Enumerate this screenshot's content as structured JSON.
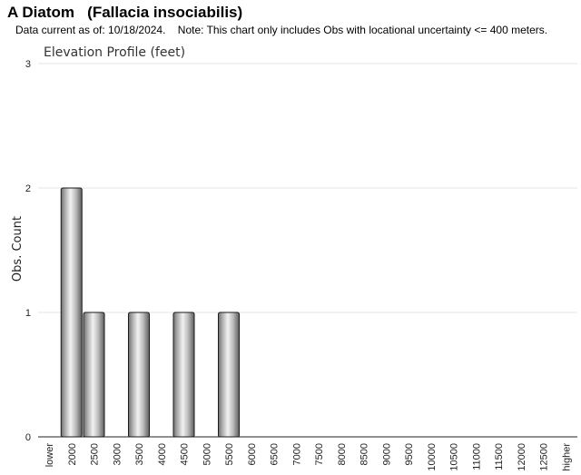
{
  "header": {
    "title": "A Diatom   (Fallacia insociabilis)",
    "subtitle": "Data current as of: 10/18/2024.    Note: This chart only includes Obs with locational uncertainty <= 400 meters."
  },
  "chart_data": {
    "type": "bar",
    "title": "Elevation Profile (feet)",
    "xlabel": "",
    "ylabel": "Obs. Count",
    "ylim": [
      0,
      3
    ],
    "yticks": [
      0,
      1,
      2,
      3
    ],
    "grid": true,
    "categories": [
      "lower",
      "2000",
      "2500",
      "3000",
      "3500",
      "4000",
      "4500",
      "5000",
      "5500",
      "6000",
      "6500",
      "7000",
      "7500",
      "8000",
      "8500",
      "9000",
      "9500",
      "10000",
      "10500",
      "11000",
      "11500",
      "12000",
      "12500",
      "higher"
    ],
    "values": [
      0,
      2,
      1,
      0,
      1,
      0,
      1,
      0,
      1,
      0,
      0,
      0,
      0,
      0,
      0,
      0,
      0,
      0,
      0,
      0,
      0,
      0,
      0,
      0
    ]
  }
}
